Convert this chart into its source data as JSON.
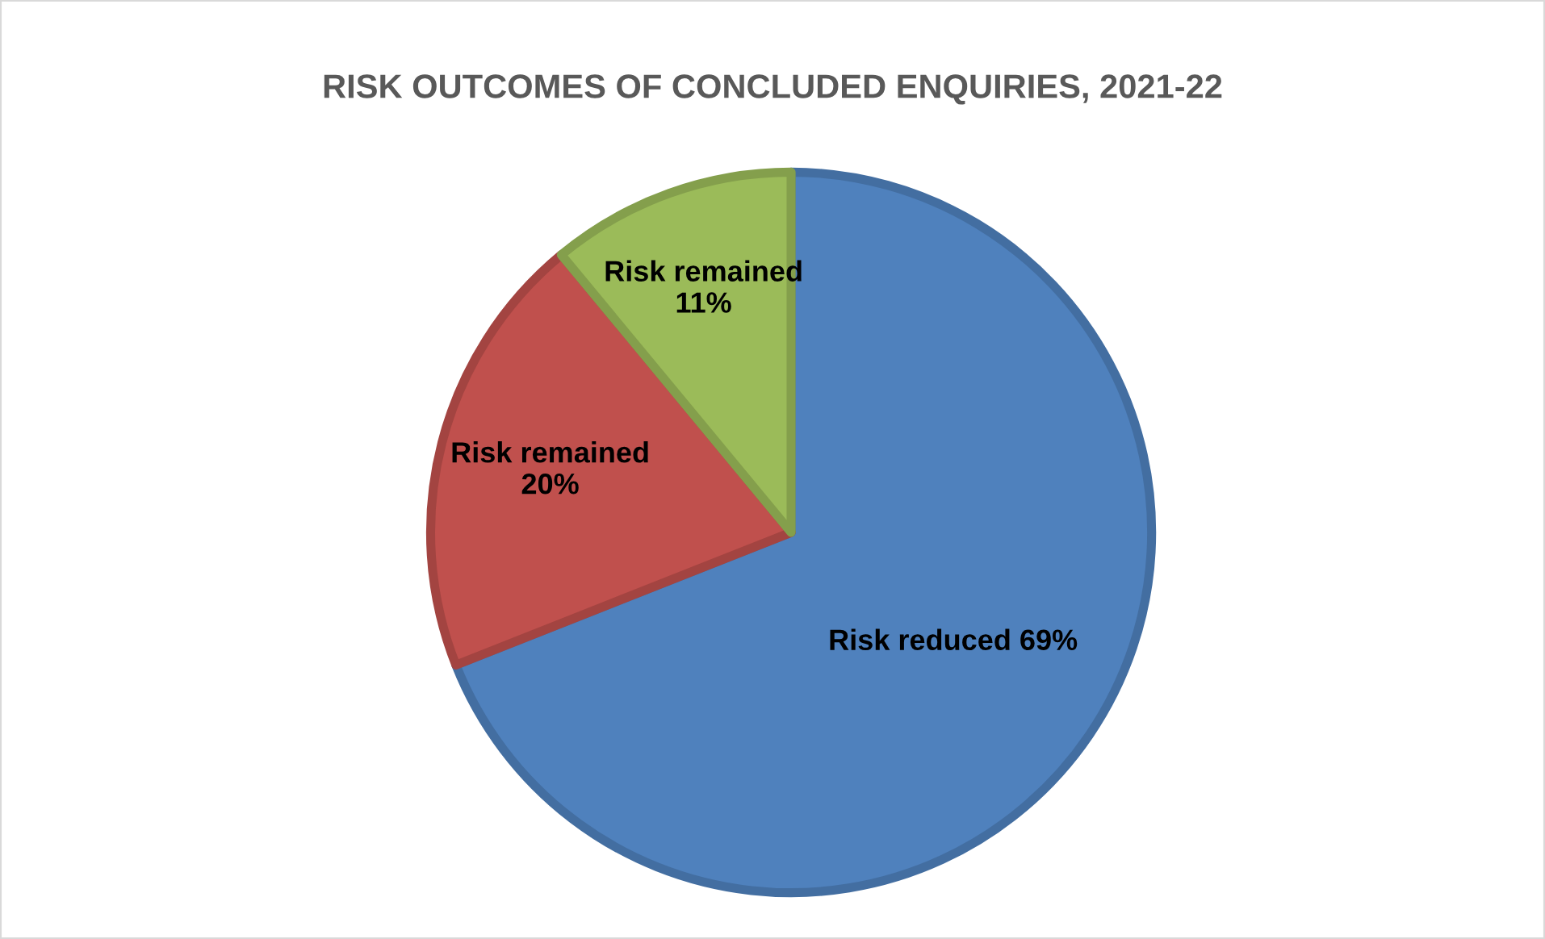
{
  "chart_data": {
    "type": "pie",
    "title": "RISK OUTCOMES OF CONCLUDED ENQUIRIES, 2021-22",
    "categories": [
      "Risk reduced",
      "Risk remained",
      "Risk remained"
    ],
    "values": [
      69,
      20,
      11
    ],
    "value_labels": [
      "69%",
      "20%",
      "11%"
    ],
    "colors": [
      "#4f81bd",
      "#c0504d",
      "#9bbb59"
    ],
    "legend": false
  }
}
